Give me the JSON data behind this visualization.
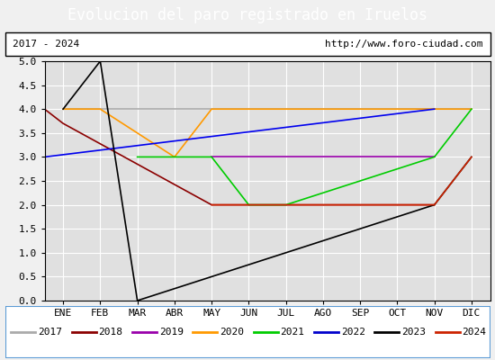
{
  "title": "Evolucion del paro registrado en Iruelos",
  "subtitle_left": "2017 - 2024",
  "subtitle_right": "http://www.foro-ciudad.com",
  "months": [
    "ENE",
    "FEB",
    "MAR",
    "ABR",
    "MAY",
    "JUN",
    "JUL",
    "AGO",
    "SEP",
    "OCT",
    "NOV",
    "DIC"
  ],
  "ylim": [
    0,
    5.0
  ],
  "yticks": [
    0.0,
    0.5,
    1.0,
    1.5,
    2.0,
    2.5,
    3.0,
    3.5,
    4.0,
    4.5,
    5.0
  ],
  "series": {
    "2017": {
      "color": "#aaaaaa",
      "data": [
        null,
        null,
        null,
        null,
        null,
        null,
        null,
        null,
        null,
        null,
        4,
        4
      ]
    },
    "2018": {
      "color": "#8b0000",
      "data": [
        null,
        null,
        null,
        null,
        null,
        2,
        2,
        2,
        2,
        2,
        2,
        null
      ]
    },
    "2019": {
      "color": "#9900aa",
      "data": [
        null,
        null,
        null,
        null,
        3,
        3,
        3,
        3,
        3,
        null,
        null,
        null
      ]
    },
    "2020": {
      "color": "#ff9900",
      "data": [
        null,
        4,
        3,
        3,
        4,
        4,
        4,
        4,
        4,
        4,
        4,
        4
      ]
    },
    "2021": {
      "color": "#00cc00",
      "data": [
        null,
        null,
        3,
        3,
        3,
        2,
        2,
        3,
        3,
        3,
        3,
        4
      ]
    },
    "2022": {
      "color": "#0000cc",
      "data": [
        null,
        null,
        3,
        null,
        null,
        null,
        null,
        null,
        null,
        null,
        null,
        null
      ]
    },
    "2023": {
      "color": "#000000",
      "data": [
        4,
        5,
        0,
        null,
        null,
        null,
        null,
        null,
        null,
        null,
        2,
        3
      ]
    },
    "2024": {
      "color": "#cc2200",
      "data": [
        null,
        null,
        null,
        null,
        null,
        null,
        null,
        null,
        null,
        null,
        null,
        null
      ]
    }
  },
  "title_bg": "#5b9bd5",
  "title_color": "#ffffff",
  "title_fontsize": 12,
  "subtitle_fontsize": 8,
  "axis_label_fontsize": 8,
  "legend_fontsize": 8,
  "plot_bg": "#e0e0e0",
  "outer_bg": "#f0f0f0",
  "legend_border_color": "#5b9bd5"
}
